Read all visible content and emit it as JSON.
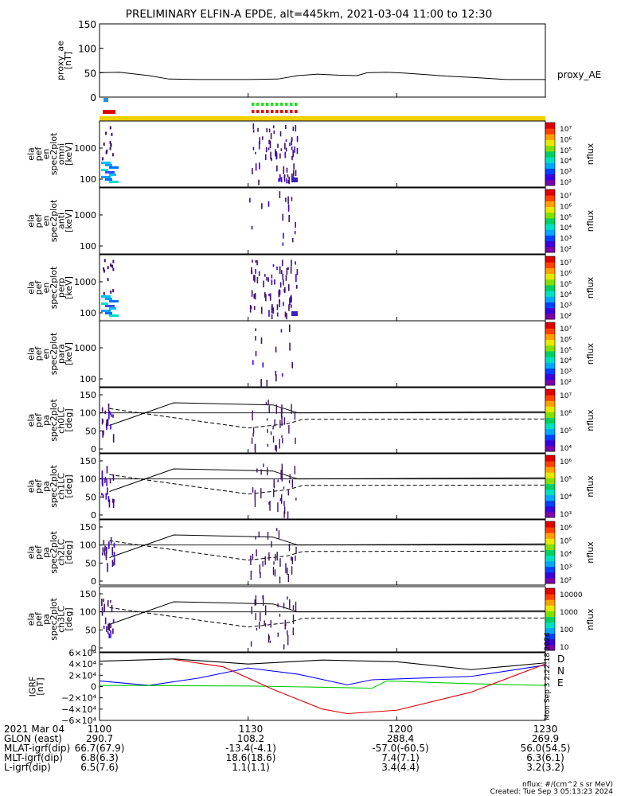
{
  "title": "PRELIMINARY ELFIN-A EPDE, alt=445km, 2021-03-04 11:00 to 12:30",
  "proxy_ae": {
    "ylabel": [
      "proxy_ae",
      "[nT]"
    ],
    "legend": "proxy_AE",
    "yticks": [
      "150",
      "100",
      "50",
      "0"
    ],
    "ylim": [
      0,
      150
    ],
    "points": [
      [
        0,
        50
      ],
      [
        4,
        51
      ],
      [
        10,
        44
      ],
      [
        14,
        37
      ],
      [
        20,
        36
      ],
      [
        30,
        36
      ],
      [
        36,
        37
      ],
      [
        40,
        44
      ],
      [
        44,
        47
      ],
      [
        48,
        45
      ],
      [
        52,
        44
      ],
      [
        54,
        50
      ],
      [
        58,
        51
      ],
      [
        62,
        49
      ],
      [
        66,
        46
      ],
      [
        70,
        43
      ],
      [
        76,
        40
      ],
      [
        82,
        36
      ],
      [
        90,
        36
      ]
    ]
  },
  "spectra": [
    {
      "ylabel": [
        "ela",
        "pef",
        "en",
        "spec2plot",
        "omni",
        "[keV]"
      ],
      "kind": "omni"
    },
    {
      "ylabel": [
        "ela",
        "pef",
        "en",
        "spec2plot",
        "anti",
        "[keV]"
      ],
      "kind": "anti"
    },
    {
      "ylabel": [
        "ela",
        "pef",
        "en",
        "spec2plot",
        "perp",
        "[keV]"
      ],
      "kind": "perp"
    },
    {
      "ylabel": [
        "ela",
        "pef",
        "en",
        "spec2plot",
        "para",
        "[keV]"
      ],
      "kind": "para"
    }
  ],
  "spec_yticks": [
    "1000",
    "100"
  ],
  "spec_colorbar": {
    "label": "nflux",
    "ticks": [
      "10⁷",
      "10⁶",
      "10⁵",
      "10⁴",
      "10³",
      "10²"
    ]
  },
  "pitch_panels": [
    {
      "ylabel": [
        "ela",
        "pef",
        "pa",
        "spec2plot",
        "ch0LC",
        "[deg]"
      ],
      "cb_ticks": [
        "10⁷",
        "10⁶",
        "10⁵",
        "10⁴"
      ]
    },
    {
      "ylabel": [
        "ela",
        "pef",
        "pa",
        "spec2plot",
        "ch1LC",
        "[deg]"
      ],
      "cb_ticks": [
        "10⁶",
        "10⁵",
        "10⁴",
        "10³"
      ]
    },
    {
      "ylabel": [
        "ela",
        "pef",
        "pa",
        "spec2plot",
        "ch2LC",
        "[deg]"
      ],
      "cb_ticks": [
        "10⁶",
        "10⁵",
        "10⁴",
        "10³",
        "10²"
      ]
    },
    {
      "ylabel": [
        "ela",
        "pef",
        "pa",
        "spec2plot",
        "ch3LC",
        "[deg]"
      ],
      "cb_ticks": [
        "10000",
        "1000",
        "100",
        "10"
      ]
    }
  ],
  "pa_yticks": [
    "150",
    "100",
    "50",
    "0"
  ],
  "igrf": {
    "ylabel": [
      "IGRF",
      "[nT]"
    ],
    "yticks": [
      "6×10⁴",
      "4×10⁴",
      "2×10⁴",
      "0",
      "−2×10⁴",
      "−4×10⁴",
      "−6×10⁴"
    ],
    "ylim": [
      -60000,
      60000
    ],
    "legend": [
      "D",
      "N",
      "E"
    ],
    "colors": {
      "D": "#000000",
      "N": "#0000ff",
      "E": "#00cc00",
      "red": "#dd0000"
    },
    "side_text": "Mon Sep 3 2:22:18 2024"
  },
  "chart_data": {
    "type": "line",
    "title": "PRELIMINARY ELFIN-A EPDE, alt=445km, 2021-03-04 11:00 to 12:30",
    "x_unit": "minutes after 11:00",
    "xlim": [
      0,
      90
    ],
    "series": [
      {
        "name": "proxy_AE",
        "x": [
          0,
          10,
          20,
          36,
          48,
          60,
          76,
          90
        ],
        "values": [
          50,
          44,
          36,
          37,
          45,
          50,
          40,
          36
        ]
      },
      {
        "name": "D",
        "x": [
          0,
          15,
          30,
          45,
          60,
          75,
          90
        ],
        "values": [
          45000,
          49000,
          40000,
          47000,
          44000,
          30000,
          42000
        ]
      },
      {
        "name": "N",
        "x": [
          0,
          10,
          30,
          50,
          75,
          90
        ],
        "values": [
          10000,
          2000,
          33000,
          3000,
          18000,
          38000
        ]
      },
      {
        "name": "E",
        "x": [
          0,
          30,
          55,
          60,
          90
        ],
        "values": [
          2000,
          1000,
          -3000,
          10000,
          2000
        ]
      }
    ]
  },
  "time_ticks": [
    "1100",
    "1130",
    "1200",
    "1230"
  ],
  "footer_rows": [
    {
      "label": "2021 Mar 04",
      "values": [
        "1100",
        "1130",
        "1200",
        "1230"
      ]
    },
    {
      "label": "GLON (east)",
      "values": [
        "290.7",
        "108.2",
        "288.4",
        "269.9"
      ]
    },
    {
      "label": "MLAT-igrf(dip)",
      "values": [
        "66.7(67.9)",
        "-13.4(-4.1)",
        "-57.0(-60.5)",
        "56.0(54.5)"
      ]
    },
    {
      "label": "MLT-igrf(dip)",
      "values": [
        "6.8(6.3)",
        "18.6(18.6)",
        "7.4(7.1)",
        "6.3(6.1)"
      ]
    },
    {
      "label": "L-igrf(dip)",
      "values": [
        "6.5(7.6)",
        "1.1(1.1)",
        "3.4(4.4)",
        "3.2(3.2)"
      ]
    }
  ],
  "footer_note": [
    "nflux: #/(cm^2 s sr MeV)",
    "Created: Tue Sep  3 05:13:23 2024"
  ]
}
